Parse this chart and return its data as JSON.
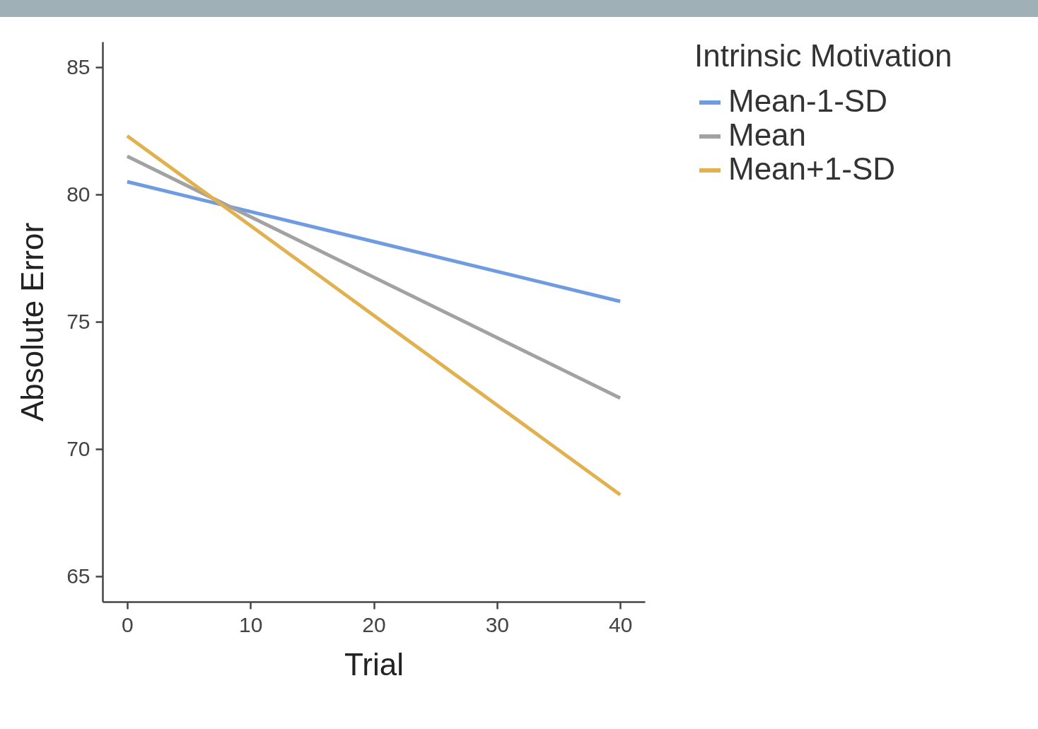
{
  "chart_data": {
    "type": "line",
    "xlabel": "Trial",
    "ylabel": "Absolute Error",
    "legend_title": "Intrinsic Motivation",
    "legend": "right",
    "grid": false,
    "x": [
      0,
      40
    ],
    "xlim": [
      -2,
      42
    ],
    "xticks": [
      0,
      10,
      20,
      30,
      40
    ],
    "ylim": [
      64,
      86
    ],
    "yticks": [
      65,
      70,
      75,
      80,
      85
    ],
    "series": [
      {
        "name": "Mean-1-SD",
        "color": "#6f9be0",
        "values": [
          80.5,
          75.8
        ]
      },
      {
        "name": "Mean",
        "color": "#a2a2a2",
        "values": [
          81.5,
          72.0
        ]
      },
      {
        "name": "Mean+1-SD",
        "color": "#e1b04f",
        "values": [
          82.3,
          68.2
        ]
      }
    ]
  }
}
